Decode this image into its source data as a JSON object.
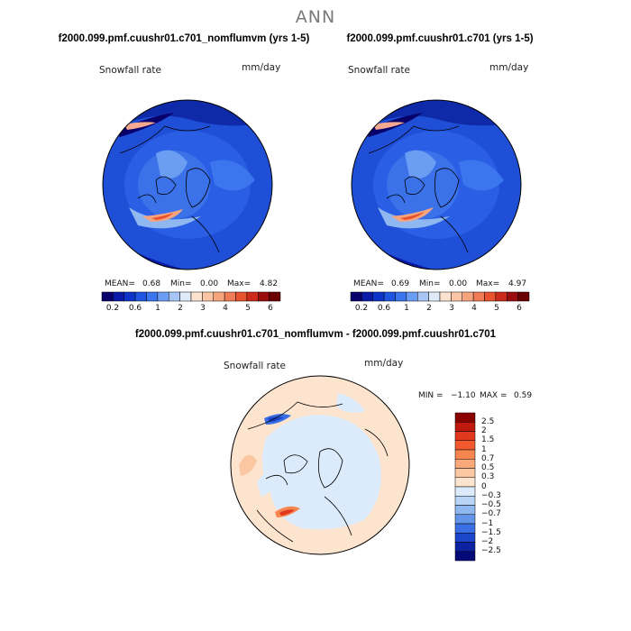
{
  "title": "ANN",
  "panels": [
    {
      "title": "f2000.099.pmf.cuushr01.c701_nomflumvm (yrs 1-5)",
      "field": "Snowfall rate",
      "units": "mm/day",
      "stats": {
        "mean_label": "MEAN=",
        "mean": "0.68",
        "min_label": "Min=",
        "min": "0.00",
        "max_label": "Max=",
        "max": "4.82"
      }
    },
    {
      "title": "f2000.099.pmf.cuushr01.c701 (yrs 1-5)",
      "field": "Snowfall rate",
      "units": "mm/day",
      "stats": {
        "mean_label": "MEAN=",
        "mean": "0.69",
        "min_label": "Min=",
        "min": "0.00",
        "max_label": "Max=",
        "max": "4.97"
      }
    }
  ],
  "colorbar": {
    "labels": [
      "0.2",
      "0.6",
      "1",
      "2",
      "3",
      "4",
      "5",
      "6"
    ],
    "colors": [
      "#08006b",
      "#0a1aa8",
      "#0d34c8",
      "#1f55e0",
      "#3b76ee",
      "#6b9df3",
      "#a7c6f5",
      "#dfe9f7",
      "#fbe3d0",
      "#f9c5a4",
      "#f6a47e",
      "#f07c55",
      "#e8522f",
      "#cc2a1a",
      "#9a0d0d",
      "#6b0000"
    ]
  },
  "difference": {
    "title": "f2000.099.pmf.cuushr01.c701_nomflumvm - f2000.099.pmf.cuushr01.c701",
    "field": "Snowfall rate",
    "units": "mm/day",
    "stats": {
      "min_label": "MIN =",
      "min": "−1.10",
      "max_label": "MAX =",
      "max": "0.59"
    },
    "colorbar_labels": [
      "2.5",
      "2",
      "1.5",
      "1",
      "0.7",
      "0.5",
      "0.3",
      "0",
      "−0.3",
      "−0.5",
      "−0.7",
      "−1",
      "−1.5",
      "−2",
      "−2.5"
    ],
    "colorbar_colors": [
      "#8b0000",
      "#c01a10",
      "#e0381c",
      "#f25a2e",
      "#f7854f",
      "#f9a97a",
      "#fbc7a2",
      "#fde4cf",
      "#dcebfb",
      "#b9d5f6",
      "#8fb7f0",
      "#6494ea",
      "#3a6fe4",
      "#1c46c9",
      "#0d22a0",
      "#060a78"
    ]
  }
}
